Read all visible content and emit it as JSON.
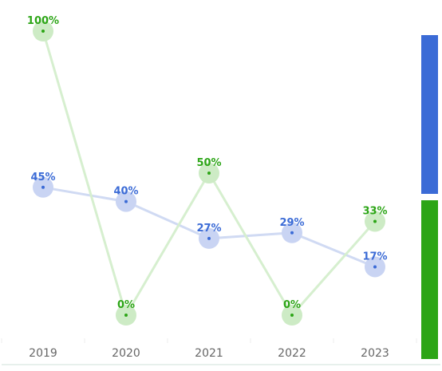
{
  "chart_data": {
    "type": "line",
    "categories": [
      "2019",
      "2020",
      "2021",
      "2022",
      "2023"
    ],
    "series": [
      {
        "values": [
          45,
          40,
          27,
          29,
          17
        ],
        "labels": [
          "45%",
          "40%",
          "27%",
          "29%",
          "17%"
        ],
        "color": "#3B6BD6",
        "line_color": "#D0DAF3",
        "halo_color": "#C9D4F3"
      },
      {
        "values": [
          100,
          0,
          50,
          0,
          33
        ],
        "labels": [
          "100%",
          "0%",
          "50%",
          "0%",
          "33%"
        ],
        "color": "#2CA516",
        "line_color": "#D6EFCF",
        "halo_color": "#CDEBC5"
      }
    ],
    "legend_bar_colors": [
      "#3B6BD6",
      "#2CA516"
    ],
    "ylim": [
      0,
      100
    ],
    "grid": false,
    "legend": "right"
  }
}
